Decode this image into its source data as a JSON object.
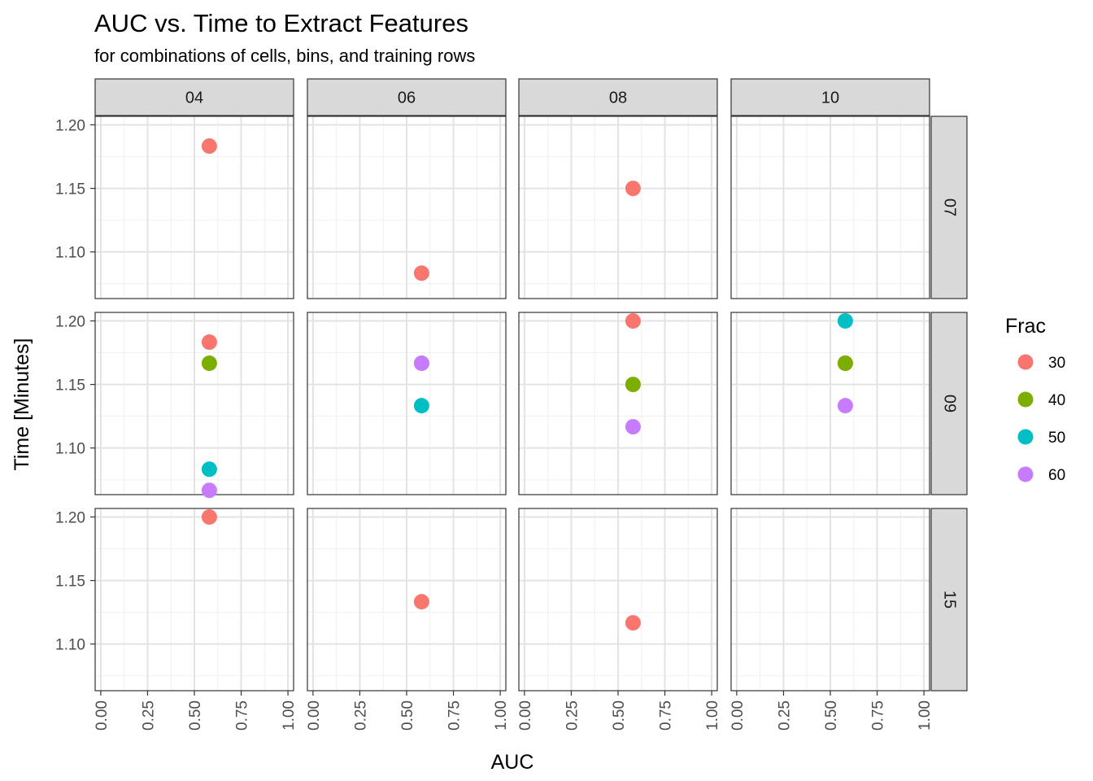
{
  "chart_data": {
    "type": "scatter",
    "title": "AUC vs. Time to Extract Features",
    "subtitle": "for combinations of cells, bins, and training rows",
    "xlabel": "AUC",
    "ylabel": "Time [Minutes]",
    "xlim": [
      -0.03,
      1.03
    ],
    "ylim": [
      1.0633,
      1.2067
    ],
    "xticks": [
      "0.00",
      "0.25",
      "0.50",
      "0.75",
      "1.00"
    ],
    "yticks": [
      "1.10",
      "1.15",
      "1.20"
    ],
    "col_facets": [
      "04",
      "06",
      "08",
      "10"
    ],
    "row_facets": [
      "07",
      "09",
      "15"
    ],
    "grid": true,
    "legend": {
      "title": "Frac",
      "placement": "right",
      "entries": [
        {
          "label": "30",
          "color": "#F8766D"
        },
        {
          "label": "40",
          "color": "#7CAE00"
        },
        {
          "label": "50",
          "color": "#00BFC4"
        },
        {
          "label": "60",
          "color": "#C77CFF"
        }
      ]
    },
    "points": [
      {
        "col": "04",
        "row": "07",
        "frac": "30",
        "x": 0.58,
        "y": 1.1833
      },
      {
        "col": "06",
        "row": "07",
        "frac": "30",
        "x": 0.58,
        "y": 1.0833
      },
      {
        "col": "08",
        "row": "07",
        "frac": "30",
        "x": 0.58,
        "y": 1.15
      },
      {
        "col": "04",
        "row": "09",
        "frac": "30",
        "x": 0.58,
        "y": 1.1833
      },
      {
        "col": "04",
        "row": "09",
        "frac": "40",
        "x": 0.58,
        "y": 1.1667
      },
      {
        "col": "04",
        "row": "09",
        "frac": "50",
        "x": 0.58,
        "y": 1.0833
      },
      {
        "col": "04",
        "row": "09",
        "frac": "60",
        "x": 0.58,
        "y": 1.0667
      },
      {
        "col": "06",
        "row": "09",
        "frac": "30",
        "x": 0.58,
        "y": 1.1667
      },
      {
        "col": "06",
        "row": "09",
        "frac": "60",
        "x": 0.58,
        "y": 1.1667
      },
      {
        "col": "06",
        "row": "09",
        "frac": "50",
        "x": 0.58,
        "y": 1.1333
      },
      {
        "col": "08",
        "row": "09",
        "frac": "30",
        "x": 0.58,
        "y": 1.2
      },
      {
        "col": "08",
        "row": "09",
        "frac": "40",
        "x": 0.58,
        "y": 1.15
      },
      {
        "col": "08",
        "row": "09",
        "frac": "60",
        "x": 0.58,
        "y": 1.1167
      },
      {
        "col": "10",
        "row": "09",
        "frac": "50",
        "x": 0.58,
        "y": 1.2
      },
      {
        "col": "10",
        "row": "09",
        "frac": "30",
        "x": 0.58,
        "y": 1.1667
      },
      {
        "col": "10",
        "row": "09",
        "frac": "40",
        "x": 0.58,
        "y": 1.1667
      },
      {
        "col": "10",
        "row": "09",
        "frac": "60",
        "x": 0.58,
        "y": 1.1333
      },
      {
        "col": "04",
        "row": "15",
        "frac": "30",
        "x": 0.58,
        "y": 1.2
      },
      {
        "col": "06",
        "row": "15",
        "frac": "30",
        "x": 0.58,
        "y": 1.1333
      },
      {
        "col": "08",
        "row": "15",
        "frac": "30",
        "x": 0.58,
        "y": 1.1167
      }
    ]
  }
}
